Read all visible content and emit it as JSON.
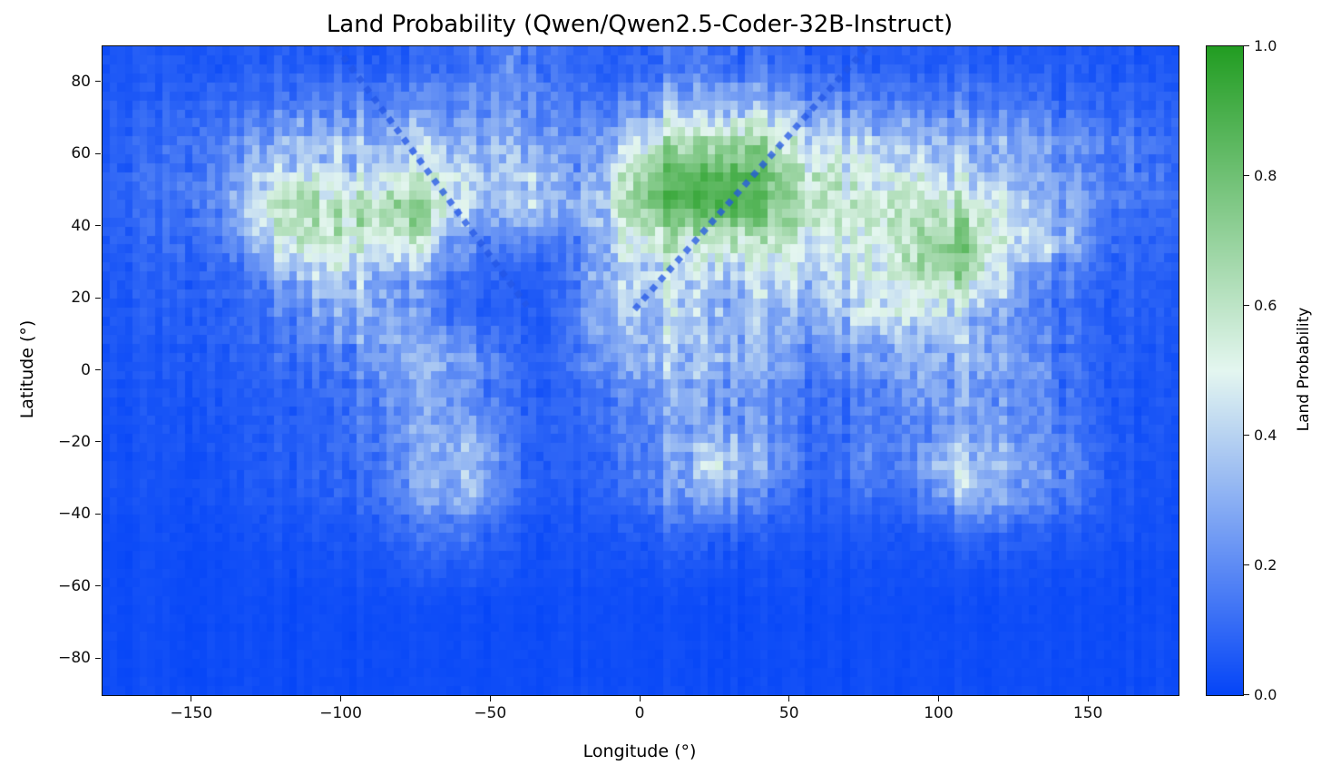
{
  "chart_data": {
    "type": "heatmap",
    "title": "Land Probability (Qwen/Qwen2.5-Coder-32B-Instruct)",
    "xlabel": "Longitude (°)",
    "ylabel": "Latitude (°)",
    "xlim": [
      -180,
      180
    ],
    "ylim": [
      -90,
      90
    ],
    "xticks": [
      -150,
      -100,
      -50,
      0,
      50,
      100,
      150
    ],
    "yticks": [
      80,
      60,
      40,
      20,
      0,
      -20,
      -40,
      -60,
      -80
    ],
    "grid_off": true,
    "colorbar": {
      "label": "Land Probability",
      "ticks": [
        "0.0",
        "0.2",
        "0.4",
        "0.6",
        "0.8",
        "1.0"
      ],
      "min": 0.0,
      "max": 1.0,
      "position": "right"
    },
    "colormap": {
      "stops": [
        {
          "v": 0.0,
          "color": "#0545f7"
        },
        {
          "v": 0.5,
          "color": "#e4f6f0"
        },
        {
          "v": 1.0,
          "color": "#229d22"
        }
      ]
    },
    "grid": {
      "lon_centers": [
        -175,
        -165,
        -155,
        -145,
        -135,
        -125,
        -115,
        -105,
        -95,
        -85,
        -75,
        -65,
        -55,
        -45,
        -35,
        -25,
        -15,
        -5,
        5,
        15,
        25,
        35,
        45,
        55,
        65,
        75,
        85,
        95,
        105,
        115,
        125,
        135,
        145,
        155,
        165,
        175
      ],
      "lat_centers": [
        85,
        75,
        65,
        55,
        45,
        35,
        25,
        15,
        5,
        -5,
        -15,
        -25,
        -35,
        -45,
        -55,
        -65,
        -75,
        -85
      ],
      "values": [
        [
          0.05,
          0.05,
          0.06,
          0.06,
          0.06,
          0.07,
          0.08,
          0.08,
          0.08,
          0.08,
          0.09,
          0.1,
          0.15,
          0.2,
          0.15,
          0.1,
          0.08,
          0.1,
          0.13,
          0.14,
          0.14,
          0.13,
          0.12,
          0.1,
          0.08,
          0.08,
          0.08,
          0.08,
          0.08,
          0.08,
          0.07,
          0.07,
          0.07,
          0.06,
          0.06,
          0.05
        ],
        [
          0.06,
          0.06,
          0.08,
          0.1,
          0.1,
          0.12,
          0.15,
          0.17,
          0.18,
          0.18,
          0.18,
          0.17,
          0.2,
          0.22,
          0.2,
          0.12,
          0.12,
          0.18,
          0.25,
          0.28,
          0.3,
          0.28,
          0.25,
          0.2,
          0.18,
          0.17,
          0.16,
          0.16,
          0.15,
          0.15,
          0.13,
          0.12,
          0.1,
          0.1,
          0.08,
          0.07
        ],
        [
          0.07,
          0.08,
          0.12,
          0.15,
          0.18,
          0.22,
          0.3,
          0.32,
          0.3,
          0.3,
          0.32,
          0.3,
          0.28,
          0.25,
          0.25,
          0.2,
          0.2,
          0.35,
          0.5,
          0.6,
          0.62,
          0.65,
          0.5,
          0.4,
          0.38,
          0.36,
          0.33,
          0.3,
          0.28,
          0.28,
          0.25,
          0.22,
          0.2,
          0.18,
          0.15,
          0.1
        ],
        [
          0.08,
          0.1,
          0.14,
          0.18,
          0.25,
          0.38,
          0.45,
          0.42,
          0.4,
          0.42,
          0.45,
          0.45,
          0.4,
          0.38,
          0.4,
          0.22,
          0.25,
          0.6,
          0.78,
          0.85,
          0.88,
          0.88,
          0.75,
          0.6,
          0.55,
          0.5,
          0.45,
          0.45,
          0.4,
          0.38,
          0.3,
          0.25,
          0.22,
          0.18,
          0.15,
          0.12
        ],
        [
          0.08,
          0.1,
          0.13,
          0.18,
          0.3,
          0.5,
          0.7,
          0.65,
          0.6,
          0.68,
          0.75,
          0.5,
          0.35,
          0.3,
          0.4,
          0.25,
          0.3,
          0.65,
          0.8,
          0.85,
          0.9,
          0.88,
          0.75,
          0.6,
          0.55,
          0.55,
          0.6,
          0.62,
          0.6,
          0.55,
          0.4,
          0.32,
          0.27,
          0.17,
          0.13,
          0.1
        ],
        [
          0.07,
          0.08,
          0.1,
          0.13,
          0.2,
          0.35,
          0.55,
          0.62,
          0.55,
          0.52,
          0.5,
          0.3,
          0.18,
          0.13,
          0.15,
          0.13,
          0.25,
          0.5,
          0.55,
          0.55,
          0.58,
          0.58,
          0.52,
          0.48,
          0.45,
          0.5,
          0.55,
          0.7,
          0.78,
          0.62,
          0.45,
          0.38,
          0.32,
          0.14,
          0.1,
          0.08
        ],
        [
          0.06,
          0.07,
          0.08,
          0.1,
          0.12,
          0.18,
          0.3,
          0.42,
          0.38,
          0.28,
          0.25,
          0.15,
          0.1,
          0.08,
          0.08,
          0.1,
          0.3,
          0.42,
          0.45,
          0.42,
          0.42,
          0.4,
          0.4,
          0.38,
          0.4,
          0.5,
          0.55,
          0.6,
          0.65,
          0.55,
          0.3,
          0.2,
          0.15,
          0.1,
          0.08,
          0.07
        ],
        [
          0.05,
          0.06,
          0.07,
          0.08,
          0.1,
          0.12,
          0.18,
          0.25,
          0.32,
          0.3,
          0.22,
          0.12,
          0.08,
          0.07,
          0.07,
          0.1,
          0.25,
          0.35,
          0.4,
          0.38,
          0.35,
          0.32,
          0.3,
          0.25,
          0.3,
          0.42,
          0.45,
          0.4,
          0.4,
          0.3,
          0.2,
          0.15,
          0.12,
          0.08,
          0.07,
          0.06
        ],
        [
          0.05,
          0.05,
          0.06,
          0.07,
          0.08,
          0.1,
          0.12,
          0.15,
          0.2,
          0.25,
          0.3,
          0.28,
          0.22,
          0.12,
          0.08,
          0.1,
          0.2,
          0.3,
          0.35,
          0.35,
          0.32,
          0.3,
          0.25,
          0.2,
          0.18,
          0.25,
          0.28,
          0.3,
          0.3,
          0.28,
          0.25,
          0.2,
          0.12,
          0.08,
          0.06,
          0.05
        ],
        [
          0.04,
          0.04,
          0.05,
          0.06,
          0.06,
          0.08,
          0.1,
          0.12,
          0.18,
          0.22,
          0.26,
          0.25,
          0.2,
          0.12,
          0.08,
          0.08,
          0.15,
          0.22,
          0.26,
          0.28,
          0.28,
          0.26,
          0.2,
          0.15,
          0.12,
          0.18,
          0.2,
          0.25,
          0.27,
          0.25,
          0.22,
          0.18,
          0.12,
          0.08,
          0.06,
          0.05
        ],
        [
          0.03,
          0.04,
          0.04,
          0.05,
          0.05,
          0.06,
          0.08,
          0.1,
          0.14,
          0.18,
          0.24,
          0.26,
          0.24,
          0.14,
          0.08,
          0.07,
          0.1,
          0.16,
          0.2,
          0.25,
          0.28,
          0.25,
          0.18,
          0.12,
          0.1,
          0.15,
          0.15,
          0.2,
          0.25,
          0.24,
          0.2,
          0.18,
          0.14,
          0.08,
          0.05,
          0.04
        ],
        [
          0.03,
          0.03,
          0.04,
          0.04,
          0.05,
          0.06,
          0.07,
          0.09,
          0.12,
          0.16,
          0.25,
          0.32,
          0.36,
          0.15,
          0.08,
          0.06,
          0.08,
          0.15,
          0.22,
          0.3,
          0.48,
          0.35,
          0.2,
          0.12,
          0.1,
          0.18,
          0.14,
          0.25,
          0.42,
          0.38,
          0.25,
          0.22,
          0.18,
          0.08,
          0.05,
          0.04
        ],
        [
          0.03,
          0.03,
          0.03,
          0.04,
          0.04,
          0.05,
          0.06,
          0.08,
          0.1,
          0.13,
          0.2,
          0.28,
          0.3,
          0.12,
          0.07,
          0.05,
          0.07,
          0.12,
          0.16,
          0.25,
          0.3,
          0.2,
          0.12,
          0.08,
          0.07,
          0.12,
          0.1,
          0.15,
          0.3,
          0.32,
          0.2,
          0.18,
          0.15,
          0.07,
          0.04,
          0.03
        ],
        [
          0.02,
          0.02,
          0.03,
          0.03,
          0.03,
          0.04,
          0.04,
          0.05,
          0.06,
          0.08,
          0.12,
          0.15,
          0.14,
          0.07,
          0.04,
          0.04,
          0.04,
          0.06,
          0.08,
          0.1,
          0.1,
          0.08,
          0.06,
          0.05,
          0.04,
          0.05,
          0.05,
          0.06,
          0.08,
          0.1,
          0.08,
          0.07,
          0.06,
          0.05,
          0.04,
          0.03
        ],
        [
          0.02,
          0.02,
          0.02,
          0.02,
          0.02,
          0.03,
          0.03,
          0.03,
          0.04,
          0.04,
          0.06,
          0.07,
          0.06,
          0.04,
          0.03,
          0.03,
          0.03,
          0.03,
          0.04,
          0.04,
          0.04,
          0.04,
          0.03,
          0.03,
          0.03,
          0.03,
          0.03,
          0.03,
          0.04,
          0.04,
          0.04,
          0.03,
          0.03,
          0.03,
          0.02,
          0.02
        ],
        [
          0.02,
          0.02,
          0.02,
          0.02,
          0.02,
          0.02,
          0.02,
          0.02,
          0.02,
          0.02,
          0.02,
          0.02,
          0.02,
          0.02,
          0.02,
          0.02,
          0.02,
          0.02,
          0.02,
          0.02,
          0.02,
          0.02,
          0.02,
          0.02,
          0.02,
          0.02,
          0.02,
          0.02,
          0.02,
          0.02,
          0.02,
          0.02,
          0.02,
          0.02,
          0.02,
          0.02
        ],
        [
          0.02,
          0.02,
          0.02,
          0.02,
          0.02,
          0.02,
          0.02,
          0.02,
          0.02,
          0.02,
          0.02,
          0.02,
          0.02,
          0.02,
          0.02,
          0.02,
          0.02,
          0.02,
          0.02,
          0.02,
          0.02,
          0.02,
          0.02,
          0.02,
          0.02,
          0.02,
          0.02,
          0.02,
          0.02,
          0.02,
          0.02,
          0.02,
          0.02,
          0.02,
          0.02,
          0.02
        ],
        [
          0.02,
          0.02,
          0.02,
          0.02,
          0.02,
          0.02,
          0.02,
          0.02,
          0.02,
          0.02,
          0.02,
          0.02,
          0.02,
          0.02,
          0.02,
          0.02,
          0.02,
          0.02,
          0.02,
          0.02,
          0.02,
          0.02,
          0.02,
          0.02,
          0.02,
          0.02,
          0.02,
          0.02,
          0.02,
          0.02,
          0.02,
          0.02,
          0.02,
          0.02,
          0.02,
          0.02
        ]
      ]
    },
    "artifacts": {
      "diagonal_dotted_lines": [
        {
          "from_lonlat": [
            -102,
            90
          ],
          "to_lonlat": [
            -38,
            18
          ]
        },
        {
          "from_lonlat": [
            -2,
            17
          ],
          "to_lonlat": [
            76,
            90
          ]
        }
      ],
      "color": "#2356e6"
    }
  }
}
